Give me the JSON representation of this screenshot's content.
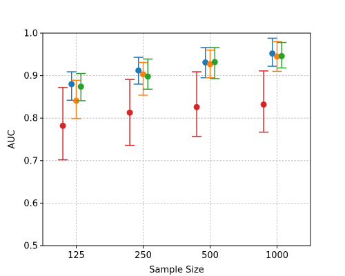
{
  "chart_data": {
    "type": "scatter",
    "xlabel": "Sample Size",
    "ylabel": "AUC",
    "ylim": [
      0.5,
      1.0
    ],
    "grid": true,
    "categories": [
      "125",
      "250",
      "500",
      "1000"
    ],
    "yticks": [
      "0.5",
      "0.6",
      "0.7",
      "0.8",
      "0.9",
      "1.0"
    ],
    "series": [
      {
        "color": "#d62728",
        "offset": -0.2,
        "values": [
          0.782,
          0.813,
          0.826,
          0.832
        ],
        "lower": [
          0.702,
          0.736,
          0.757,
          0.767
        ],
        "upper": [
          0.872,
          0.891,
          0.909,
          0.911
        ]
      },
      {
        "color": "#1f77b4",
        "offset": -0.07,
        "values": [
          0.88,
          0.912,
          0.931,
          0.952
        ],
        "lower": [
          0.842,
          0.88,
          0.895,
          0.922
        ],
        "upper": [
          0.909,
          0.943,
          0.966,
          0.988
        ]
      },
      {
        "color": "#ff7f0e",
        "offset": 0.0,
        "values": [
          0.841,
          0.903,
          0.927,
          0.945
        ],
        "lower": [
          0.799,
          0.854,
          0.895,
          0.91
        ],
        "upper": [
          0.889,
          0.931,
          0.96,
          0.98
        ]
      },
      {
        "color": "#2ca02c",
        "offset": 0.07,
        "values": [
          0.874,
          0.898,
          0.932,
          0.946
        ],
        "lower": [
          0.841,
          0.868,
          0.893,
          0.918
        ],
        "upper": [
          0.905,
          0.939,
          0.966,
          0.978
        ]
      }
    ]
  }
}
